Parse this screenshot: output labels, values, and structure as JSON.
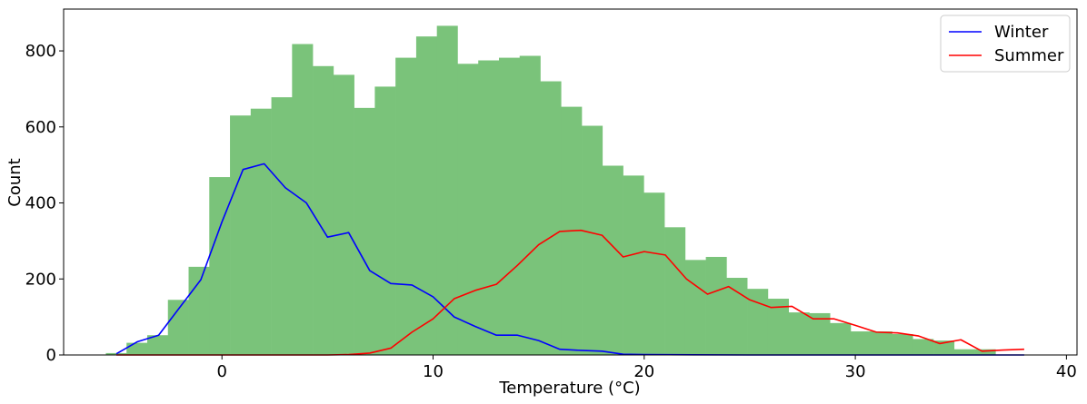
{
  "chart_data": {
    "type": "histogram",
    "title": "",
    "xlabel": "Temperature (°C)",
    "ylabel": "Count",
    "xlim": [
      -7.5,
      40.5
    ],
    "ylim": [
      0,
      910
    ],
    "xticks": [
      0,
      10,
      20,
      30,
      40
    ],
    "yticks": [
      0,
      200,
      400,
      600,
      800
    ],
    "grid": false,
    "legend_position": "top-right",
    "colors": {
      "histogram": "#7ac37a",
      "winter": "#0000ff",
      "summer": "#ff0000"
    },
    "histogram": {
      "bin_start": -5.5,
      "bin_width": 0.98,
      "counts": [
        5,
        32,
        52,
        145,
        232,
        468,
        630,
        648,
        678,
        818,
        760,
        737,
        650,
        706,
        782,
        838,
        866,
        766,
        775,
        782,
        787,
        720,
        653,
        603,
        498,
        472,
        427,
        336,
        250,
        258,
        203,
        174,
        148,
        112,
        110,
        84,
        62,
        62,
        55,
        42,
        38,
        15,
        15
      ]
    },
    "series": [
      {
        "name": "Winter",
        "x": [
          -5,
          -4,
          -3,
          -2,
          -1,
          0,
          1,
          2,
          3,
          4,
          5,
          6,
          7,
          8,
          9,
          10,
          11,
          12,
          13,
          14,
          15,
          16,
          17,
          18,
          19,
          20,
          25,
          30,
          35,
          38
        ],
        "values": [
          3,
          35,
          52,
          125,
          198,
          350,
          488,
          503,
          440,
          400,
          310,
          322,
          222,
          188,
          184,
          153,
          100,
          75,
          52,
          52,
          38,
          15,
          12,
          10,
          2,
          1,
          0,
          0,
          0,
          0
        ]
      },
      {
        "name": "Summer",
        "x": [
          -5,
          0,
          5,
          6,
          7,
          8,
          9,
          10,
          11,
          12,
          13,
          14,
          15,
          16,
          17,
          18,
          19,
          20,
          21,
          22,
          23,
          24,
          25,
          26,
          27,
          28,
          29,
          30,
          31,
          32,
          33,
          34,
          35,
          36,
          37,
          38
        ],
        "values": [
          0,
          0,
          0,
          1,
          5,
          18,
          60,
          95,
          148,
          170,
          186,
          236,
          290,
          325,
          328,
          315,
          258,
          272,
          263,
          200,
          160,
          180,
          145,
          125,
          128,
          95,
          95,
          78,
          60,
          58,
          50,
          30,
          40,
          10,
          13,
          15
        ]
      }
    ]
  }
}
